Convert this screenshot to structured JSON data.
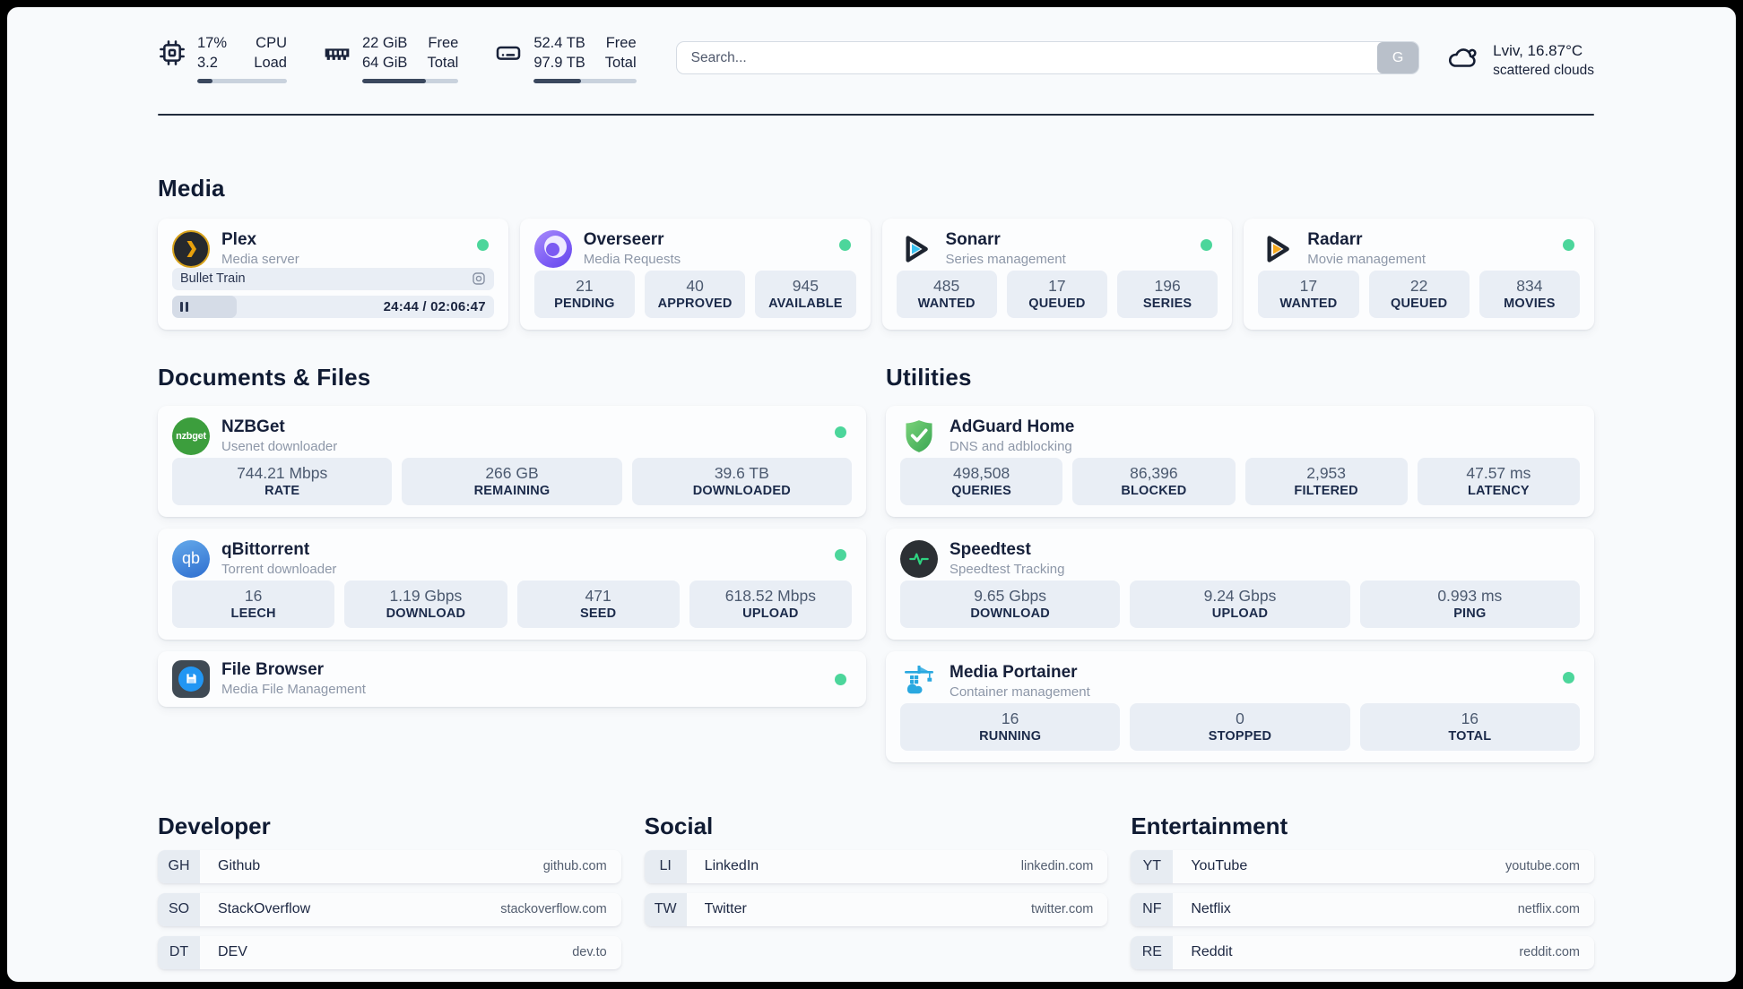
{
  "topbar": {
    "cpu": {
      "row1_value": "17%",
      "row1_label": "CPU",
      "row2_value": "3.2",
      "row2_label": "Load",
      "progress": 17
    },
    "ram": {
      "row1_value": "22 GiB",
      "row1_label": "Free",
      "row2_value": "64 GiB",
      "row2_label": "Total",
      "progress": 66
    },
    "disk": {
      "row1_value": "52.4 TB",
      "row1_label": "Free",
      "row2_value": "97.9 TB",
      "row2_label": "Total",
      "progress": 46
    },
    "search": {
      "placeholder": "Search...",
      "button_label": "G"
    },
    "weather": {
      "location": "Lviv, 16.87°C",
      "condition": "scattered clouds"
    }
  },
  "sections": {
    "media": "Media",
    "documents": "Documents & Files",
    "utilities": "Utilities"
  },
  "colors": {
    "status_online": "#4cd69b"
  },
  "services": {
    "plex": {
      "name": "Plex",
      "desc": "Media server",
      "player": {
        "title": "Bullet Train",
        "time": "24:44 / 02:06:47",
        "progress": 20
      }
    },
    "overseerr": {
      "name": "Overseerr",
      "desc": "Media Requests",
      "stats": [
        {
          "value": "21",
          "label": "PENDING"
        },
        {
          "value": "40",
          "label": "APPROVED"
        },
        {
          "value": "945",
          "label": "AVAILABLE"
        }
      ]
    },
    "sonarr": {
      "name": "Sonarr",
      "desc": "Series management",
      "stats": [
        {
          "value": "485",
          "label": "WANTED"
        },
        {
          "value": "17",
          "label": "QUEUED"
        },
        {
          "value": "196",
          "label": "SERIES"
        }
      ]
    },
    "radarr": {
      "name": "Radarr",
      "desc": "Movie management",
      "stats": [
        {
          "value": "17",
          "label": "WANTED"
        },
        {
          "value": "22",
          "label": "QUEUED"
        },
        {
          "value": "834",
          "label": "MOVIES"
        }
      ]
    },
    "nzbget": {
      "name": "NZBGet",
      "desc": "Usenet downloader",
      "icon_text": "nzbget",
      "stats": [
        {
          "value": "744.21 Mbps",
          "label": "RATE"
        },
        {
          "value": "266 GB",
          "label": "REMAINING"
        },
        {
          "value": "39.6 TB",
          "label": "DOWNLOADED"
        }
      ]
    },
    "qbittorrent": {
      "name": "qBittorrent",
      "desc": "Torrent downloader",
      "icon_text": "qb",
      "stats": [
        {
          "value": "16",
          "label": "LEECH"
        },
        {
          "value": "1.19 Gbps",
          "label": "DOWNLOAD"
        },
        {
          "value": "471",
          "label": "SEED"
        },
        {
          "value": "618.52 Mbps",
          "label": "UPLOAD"
        }
      ]
    },
    "filebrowser": {
      "name": "File Browser",
      "desc": "Media File Management"
    },
    "adguard": {
      "name": "AdGuard Home",
      "desc": "DNS and adblocking",
      "stats": [
        {
          "value": "498,508",
          "label": "QUERIES"
        },
        {
          "value": "86,396",
          "label": "BLOCKED"
        },
        {
          "value": "2,953",
          "label": "FILTERED"
        },
        {
          "value": "47.57 ms",
          "label": "LATENCY"
        }
      ]
    },
    "speedtest": {
      "name": "Speedtest",
      "desc": "Speedtest Tracking",
      "stats": [
        {
          "value": "9.65 Gbps",
          "label": "DOWNLOAD"
        },
        {
          "value": "9.24 Gbps",
          "label": "UPLOAD"
        },
        {
          "value": "0.993 ms",
          "label": "PING"
        }
      ]
    },
    "portainer": {
      "name": "Media Portainer",
      "desc": "Container management",
      "stats": [
        {
          "value": "16",
          "label": "RUNNING"
        },
        {
          "value": "0",
          "label": "STOPPED"
        },
        {
          "value": "16",
          "label": "TOTAL"
        }
      ]
    }
  },
  "bookmarks": {
    "developer": {
      "title": "Developer",
      "items": [
        {
          "abbr": "GH",
          "name": "Github",
          "url": "github.com"
        },
        {
          "abbr": "SO",
          "name": "StackOverflow",
          "url": "stackoverflow.com"
        },
        {
          "abbr": "DT",
          "name": "DEV",
          "url": "dev.to"
        }
      ]
    },
    "social": {
      "title": "Social",
      "items": [
        {
          "abbr": "LI",
          "name": "LinkedIn",
          "url": "linkedin.com"
        },
        {
          "abbr": "TW",
          "name": "Twitter",
          "url": "twitter.com"
        }
      ]
    },
    "entertainment": {
      "title": "Entertainment",
      "items": [
        {
          "abbr": "YT",
          "name": "YouTube",
          "url": "youtube.com"
        },
        {
          "abbr": "NF",
          "name": "Netflix",
          "url": "netflix.com"
        },
        {
          "abbr": "RE",
          "name": "Reddit",
          "url": "reddit.com"
        }
      ]
    }
  }
}
